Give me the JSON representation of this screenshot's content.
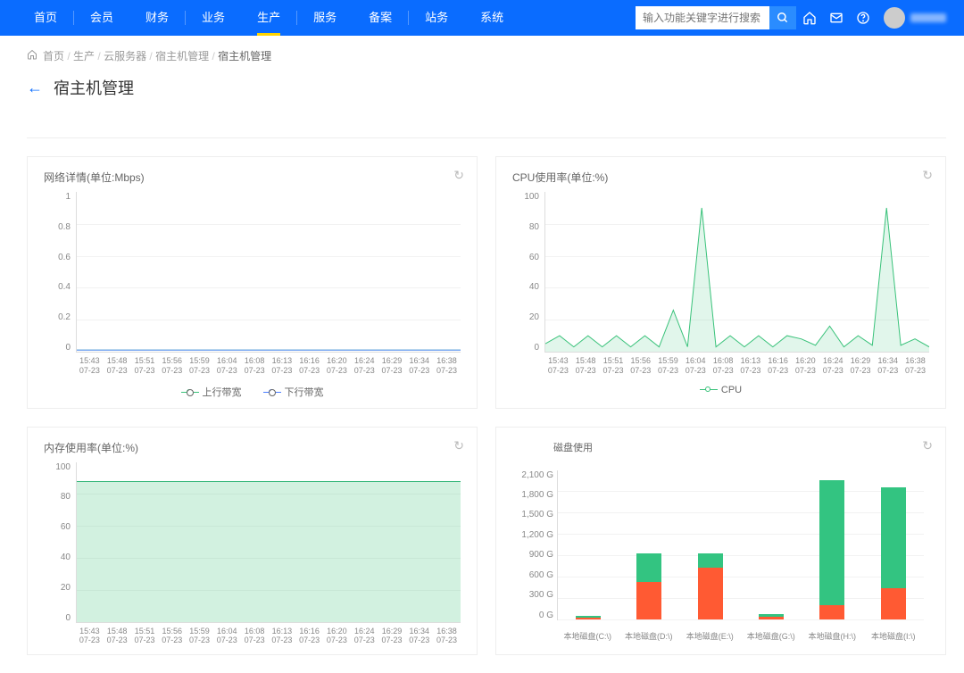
{
  "nav": {
    "items": [
      "首页",
      "会员",
      "财务",
      "业务",
      "生产",
      "服务",
      "备案",
      "站务",
      "系统"
    ],
    "active_index": 4
  },
  "search": {
    "placeholder": "输入功能关键字进行搜索"
  },
  "breadcrumb": {
    "items": [
      "首页",
      "生产",
      "云服务器",
      "宿主机管理",
      "宿主机管理"
    ]
  },
  "page": {
    "title": "宿主机管理"
  },
  "x_axis_ticks": [
    {
      "t": "15:43",
      "d": "07-23"
    },
    {
      "t": "15:48",
      "d": "07-23"
    },
    {
      "t": "15:51",
      "d": "07-23"
    },
    {
      "t": "15:56",
      "d": "07-23"
    },
    {
      "t": "15:59",
      "d": "07-23"
    },
    {
      "t": "16:04",
      "d": "07-23"
    },
    {
      "t": "16:08",
      "d": "07-23"
    },
    {
      "t": "16:13",
      "d": "07-23"
    },
    {
      "t": "16:16",
      "d": "07-23"
    },
    {
      "t": "16:20",
      "d": "07-23"
    },
    {
      "t": "16:24",
      "d": "07-23"
    },
    {
      "t": "16:29",
      "d": "07-23"
    },
    {
      "t": "16:34",
      "d": "07-23"
    },
    {
      "t": "16:38",
      "d": "07-23"
    }
  ],
  "network_chart": {
    "title": "网络详情(单位:Mbps)",
    "type": "line",
    "ylim": [
      0,
      1
    ],
    "yticks": [
      "1",
      "0.8",
      "0.6",
      "0.4",
      "0.2",
      "0"
    ],
    "grid_color": "#f2f2f2",
    "series": [
      {
        "name": "上行带宽",
        "color": "#39c27a",
        "values": [
          0.01,
          0.01,
          0.01,
          0.01,
          0.01,
          0.01,
          0.01,
          0.01,
          0.01,
          0.01,
          0.01,
          0.01,
          0.01,
          0.01
        ]
      },
      {
        "name": "下行带宽",
        "color": "#4a7dff",
        "values": [
          0.01,
          0.01,
          0.01,
          0.01,
          0.01,
          0.01,
          0.01,
          0.01,
          0.01,
          0.01,
          0.01,
          0.01,
          0.01,
          0.01
        ]
      }
    ],
    "legend": [
      "上行带宽",
      "下行带宽"
    ]
  },
  "cpu_chart": {
    "title": "CPU使用率(单位:%)",
    "type": "line",
    "ylim": [
      0,
      100
    ],
    "yticks": [
      "100",
      "80",
      "60",
      "40",
      "20",
      "0"
    ],
    "color": "#39c27a",
    "series_name": "CPU",
    "values": [
      5,
      10,
      3,
      10,
      3,
      10,
      3,
      10,
      3,
      26,
      3,
      90,
      3,
      10,
      3,
      10,
      3,
      10,
      8,
      4,
      16,
      3,
      10,
      4,
      90,
      4,
      8,
      3
    ],
    "legend": [
      "CPU"
    ]
  },
  "memory_chart": {
    "title": "内存使用率(单位:%)",
    "type": "area",
    "ylim": [
      0,
      100
    ],
    "yticks": [
      "100",
      "80",
      "60",
      "40",
      "20",
      "0"
    ],
    "fill_color": "rgba(76,199,130,0.25)",
    "line_color": "#33b579",
    "value_constant": 88
  },
  "disk_chart": {
    "title": "磁盘使用",
    "type": "stacked-bar",
    "ylim": [
      0,
      2100
    ],
    "yticks": [
      "2,100 G",
      "1,800 G",
      "1,500 G",
      "1,200 G",
      "900 G",
      "600 G",
      "300 G",
      "0 G"
    ],
    "colors": {
      "used": "#ff5a33",
      "free": "#33c481"
    },
    "bars": [
      {
        "label": "本地磁盘(C:\\)",
        "used": 20,
        "free": 30
      },
      {
        "label": "本地磁盘(D:\\)",
        "used": 520,
        "free": 400
      },
      {
        "label": "本地磁盘(E:\\)",
        "used": 720,
        "free": 200
      },
      {
        "label": "本地磁盘(G:\\)",
        "used": 30,
        "free": 40
      },
      {
        "label": "本地磁盘(H:\\)",
        "used": 200,
        "free": 1760
      },
      {
        "label": "本地磁盘(I:\\)",
        "used": 430,
        "free": 1430
      }
    ]
  }
}
